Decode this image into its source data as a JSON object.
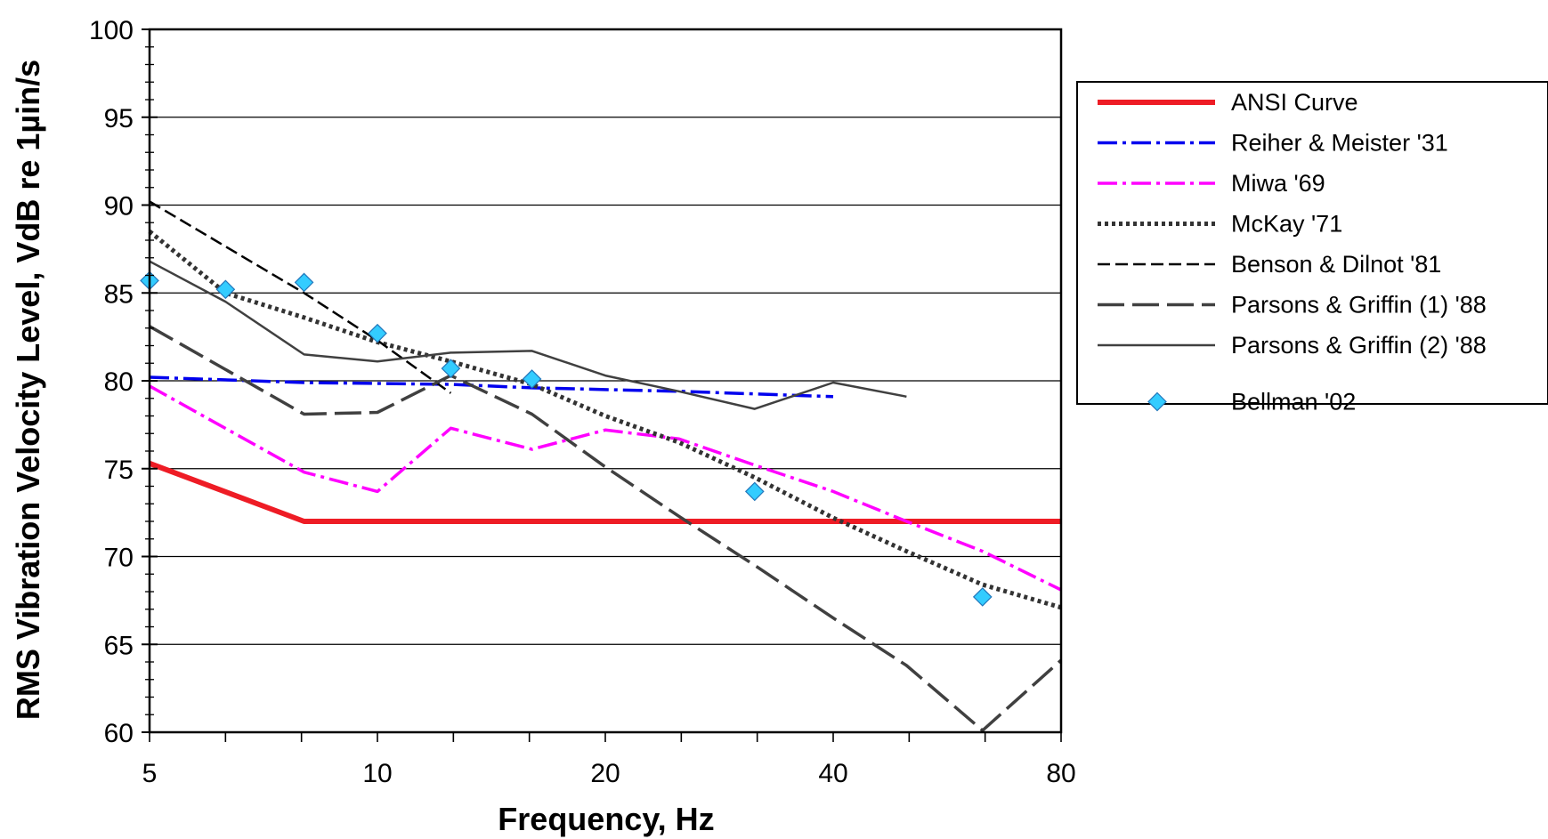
{
  "chart_data": {
    "type": "line",
    "title": "",
    "xlabel": "Frequency, Hz",
    "ylabel": "RMS Vibration Velocity Level, VdB re 1µin/s",
    "x_scale": "log2",
    "xlim": [
      5,
      80
    ],
    "ylim": [
      60,
      100
    ],
    "x_ticks": [
      5,
      10,
      20,
      40,
      80
    ],
    "y_ticks": [
      60,
      65,
      70,
      75,
      80,
      85,
      90,
      95,
      100
    ],
    "grid": "horizontal major",
    "legend_position": "right",
    "series": [
      {
        "name": "ANSI Curve",
        "color": "#ee1c25",
        "style": "solid-thick",
        "points": [
          [
            5,
            75.3
          ],
          [
            8,
            72.0
          ],
          [
            80,
            72.0
          ]
        ]
      },
      {
        "name": "Reiher & Meister '31",
        "color": "#0000ee",
        "style": "dash-dot",
        "points": [
          [
            5,
            80.2
          ],
          [
            8,
            79.9
          ],
          [
            12.5,
            79.8
          ],
          [
            16,
            79.6
          ],
          [
            25,
            79.4
          ],
          [
            40,
            79.1
          ]
        ]
      },
      {
        "name": "Miwa '69",
        "color": "#ff00ff",
        "style": "dash-dot",
        "points": [
          [
            5,
            79.7
          ],
          [
            8,
            74.8
          ],
          [
            10,
            73.7
          ],
          [
            12.5,
            77.3
          ],
          [
            16,
            76.1
          ],
          [
            20,
            77.2
          ],
          [
            25,
            76.7
          ],
          [
            31.5,
            75.2
          ],
          [
            40,
            73.7
          ],
          [
            50,
            72.0
          ],
          [
            63,
            70.3
          ],
          [
            80,
            68.1
          ]
        ]
      },
      {
        "name": "McKay '71",
        "color": "#333333",
        "style": "dotted",
        "points": [
          [
            5,
            88.5
          ],
          [
            6.3,
            85.0
          ],
          [
            8,
            83.6
          ],
          [
            10,
            82.2
          ],
          [
            12.5,
            81.1
          ],
          [
            16,
            79.8
          ],
          [
            20,
            78.0
          ],
          [
            25,
            76.5
          ],
          [
            31.5,
            74.5
          ],
          [
            40,
            72.2
          ],
          [
            50,
            70.3
          ],
          [
            63,
            68.4
          ],
          [
            80,
            67.1
          ]
        ]
      },
      {
        "name": "Benson & Dilnot '81",
        "color": "#000000",
        "style": "dashed",
        "points": [
          [
            5,
            90.2
          ],
          [
            8,
            85.0
          ],
          [
            10,
            82.3
          ],
          [
            12.5,
            79.3
          ]
        ]
      },
      {
        "name": "Parsons & Griffin (1) '88",
        "color": "#404040",
        "style": "long-dash",
        "points": [
          [
            5,
            83.1
          ],
          [
            8,
            78.1
          ],
          [
            10,
            78.2
          ],
          [
            12.5,
            80.3
          ],
          [
            16,
            78.1
          ],
          [
            20,
            75.1
          ],
          [
            25,
            72.3
          ],
          [
            31.5,
            69.5
          ],
          [
            40,
            66.5
          ],
          [
            50,
            63.8
          ],
          [
            63,
            60.1
          ],
          [
            80,
            64.1
          ]
        ]
      },
      {
        "name": "Parsons & Griffin (2) '88",
        "color": "#404040",
        "style": "solid-thin",
        "points": [
          [
            5,
            86.8
          ],
          [
            6.3,
            84.5
          ],
          [
            8,
            81.5
          ],
          [
            10,
            81.1
          ],
          [
            12.5,
            81.6
          ],
          [
            16,
            81.7
          ],
          [
            20,
            80.3
          ],
          [
            25,
            79.4
          ],
          [
            31.5,
            78.4
          ],
          [
            40,
            79.9
          ],
          [
            50,
            79.1
          ]
        ]
      },
      {
        "name": "Bellman '02",
        "color": "#33ccff",
        "style": "markers",
        "points": [
          [
            5,
            85.7
          ],
          [
            6.3,
            85.2
          ],
          [
            8,
            85.6
          ],
          [
            10,
            82.7
          ],
          [
            12.5,
            80.7
          ],
          [
            16,
            80.1
          ],
          [
            31.5,
            73.7
          ],
          [
            63,
            67.7
          ]
        ]
      }
    ]
  }
}
